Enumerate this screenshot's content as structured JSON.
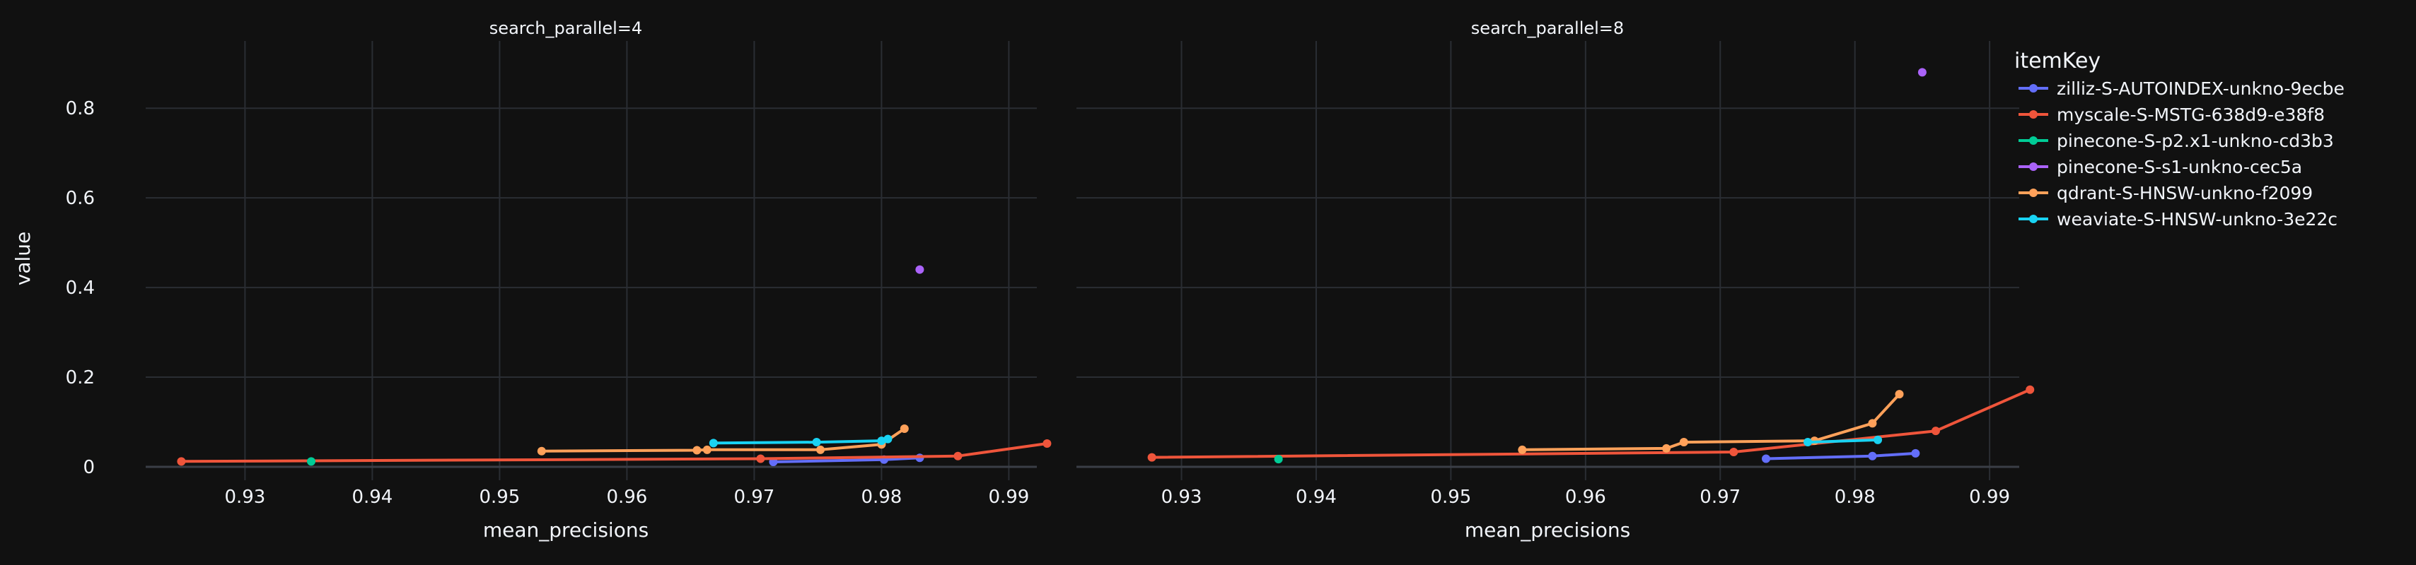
{
  "chart_data": {
    "type": "line",
    "ylabel": "value",
    "xlabel": "mean_precisions",
    "legend": {
      "title": "itemKey",
      "placement": "right"
    },
    "series": [
      {
        "name": "zilliz-S-AUTOINDEX-unkno-9ecbe",
        "color": "#636efa"
      },
      {
        "name": "myscale-S-MSTG-638d9-e38f8",
        "color": "#ef553b"
      },
      {
        "name": "pinecone-S-p2.x1-unkno-cd3b3",
        "color": "#00cc96"
      },
      {
        "name": "pinecone-S-s1-unkno-cec5a",
        "color": "#ab63fa"
      },
      {
        "name": "qdrant-S-HNSW-unkno-f2099",
        "color": "#ffa15a"
      },
      {
        "name": "weaviate-S-HNSW-unkno-3e22c",
        "color": "#19d3f3"
      }
    ],
    "panels": [
      {
        "title": "search_parallel=4",
        "xlabel": "mean_precisions",
        "xlim": [
          0.9222,
          0.9922
        ],
        "ylim": [
          -0.03,
          0.95
        ],
        "xticks": [
          "0.93",
          "0.94",
          "0.95",
          "0.96",
          "0.97",
          "0.98",
          "0.99"
        ],
        "traces": [
          {
            "series": 0,
            "points": [
              [
                0.9715,
                0.011
              ],
              [
                0.9802,
                0.016
              ],
              [
                0.983,
                0.02
              ]
            ]
          },
          {
            "series": 1,
            "points": [
              [
                0.925,
                0.012
              ],
              [
                0.9705,
                0.018
              ],
              [
                0.986,
                0.024
              ],
              [
                0.993,
                0.052
              ]
            ]
          },
          {
            "series": 2,
            "points": [
              [
                0.9352,
                0.012
              ]
            ]
          },
          {
            "series": 3,
            "points": [
              [
                0.983,
                0.44
              ]
            ]
          },
          {
            "series": 4,
            "points": [
              [
                0.9533,
                0.035
              ],
              [
                0.9655,
                0.037
              ],
              [
                0.9663,
                0.038
              ],
              [
                0.9752,
                0.038
              ],
              [
                0.98,
                0.05
              ],
              [
                0.9818,
                0.085
              ]
            ]
          },
          {
            "series": 5,
            "points": [
              [
                0.9668,
                0.053
              ],
              [
                0.9749,
                0.055
              ],
              [
                0.98,
                0.058
              ],
              [
                0.9805,
                0.062
              ]
            ]
          }
        ]
      },
      {
        "title": "search_parallel=8",
        "xlabel": "mean_precisions",
        "xlim": [
          0.9222,
          0.9922
        ],
        "ylim": [
          -0.03,
          0.95
        ],
        "xticks": [
          "0.93",
          "0.94",
          "0.95",
          "0.96",
          "0.97",
          "0.98",
          "0.99"
        ],
        "traces": [
          {
            "series": 0,
            "points": [
              [
                0.9734,
                0.018
              ],
              [
                0.9813,
                0.024
              ],
              [
                0.9845,
                0.03
              ]
            ]
          },
          {
            "series": 1,
            "points": [
              [
                0.9278,
                0.021
              ],
              [
                0.971,
                0.033
              ],
              [
                0.986,
                0.08
              ],
              [
                0.993,
                0.172
              ]
            ]
          },
          {
            "series": 2,
            "points": [
              [
                0.9372,
                0.017
              ]
            ]
          },
          {
            "series": 3,
            "points": [
              [
                0.985,
                0.88
              ]
            ]
          },
          {
            "series": 4,
            "points": [
              [
                0.9553,
                0.038
              ],
              [
                0.966,
                0.041
              ],
              [
                0.9673,
                0.055
              ],
              [
                0.977,
                0.058
              ],
              [
                0.9813,
                0.097
              ],
              [
                0.9833,
                0.162
              ]
            ]
          },
          {
            "series": 5,
            "points": [
              [
                0.9765,
                0.055
              ],
              [
                0.9817,
                0.06
              ]
            ]
          }
        ]
      }
    ],
    "yticks": [
      "0",
      "0.2",
      "0.4",
      "0.6",
      "0.8"
    ],
    "ytick_values": [
      0,
      0.2,
      0.4,
      0.6,
      0.8
    ],
    "xtick_values": [
      0.93,
      0.94,
      0.95,
      0.96,
      0.97,
      0.98,
      0.99
    ],
    "grid": true
  }
}
